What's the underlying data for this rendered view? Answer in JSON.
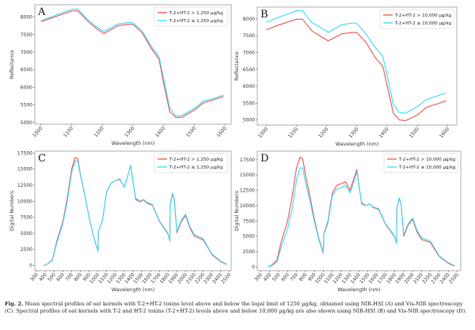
{
  "chart_data": [
    {
      "panel": "A",
      "type": "line",
      "xlabel": "Wavelength (nm)",
      "ylabel": "Reflectance",
      "xlim": [
        980,
        1620
      ],
      "ylim": [
        4950,
        8350
      ],
      "xticks": [
        1000,
        1100,
        1200,
        1300,
        1400,
        1500,
        1600
      ],
      "yticks": [
        5000,
        5500,
        6000,
        6500,
        7000,
        7500,
        8000
      ],
      "legend_position": "top-right",
      "grid": false,
      "series": [
        {
          "name": "T-2+HT-2 > 1,250 µg/kg",
          "color": "#f05050",
          "x": [
            1000,
            1050,
            1100,
            1120,
            1150,
            1180,
            1205,
            1250,
            1290,
            1300,
            1330,
            1360,
            1385,
            1400,
            1420,
            1440,
            1460,
            1500,
            1530,
            1560,
            1595
          ],
          "y": [
            7870,
            8020,
            8170,
            8180,
            7900,
            7680,
            7530,
            7750,
            7800,
            7790,
            7550,
            7100,
            6800,
            6100,
            5300,
            5140,
            5150,
            5350,
            5560,
            5640,
            5740
          ]
        },
        {
          "name": "T-2+HT-2 ≤ 1,250 µg/kg",
          "color": "#33ddff",
          "x": [
            1000,
            1050,
            1100,
            1120,
            1150,
            1180,
            1205,
            1250,
            1290,
            1300,
            1330,
            1360,
            1385,
            1400,
            1420,
            1440,
            1460,
            1500,
            1530,
            1560,
            1595
          ],
          "y": [
            7890,
            8060,
            8220,
            8230,
            7950,
            7730,
            7590,
            7800,
            7850,
            7840,
            7600,
            7160,
            6870,
            6250,
            5400,
            5190,
            5200,
            5400,
            5610,
            5680,
            5780
          ]
        }
      ]
    },
    {
      "panel": "B",
      "type": "line",
      "xlabel": "Wavelength (nm)",
      "ylabel": "Reflectance",
      "xlim": [
        970,
        1630
      ],
      "ylim": [
        4850,
        8350
      ],
      "xticks": [
        1000,
        1100,
        1200,
        1300,
        1400,
        1500,
        1600
      ],
      "yticks": [
        5000,
        5500,
        6000,
        6500,
        7000,
        7500,
        8000
      ],
      "legend_position": "top-right",
      "grid": false,
      "series": [
        {
          "name": "T-2+HT-2 > 10,000 µg/kg",
          "color": "#f05050",
          "x": [
            1000,
            1050,
            1100,
            1120,
            1150,
            1180,
            1205,
            1250,
            1290,
            1300,
            1330,
            1360,
            1385,
            1400,
            1420,
            1440,
            1460,
            1500,
            1530,
            1560,
            1595
          ],
          "y": [
            7680,
            7850,
            7990,
            7990,
            7650,
            7480,
            7350,
            7560,
            7600,
            7590,
            7300,
            6850,
            6600,
            6000,
            5200,
            5000,
            4980,
            5150,
            5380,
            5460,
            5570
          ]
        },
        {
          "name": "T-2+HT-2 ≤ 10,000 µg/kg",
          "color": "#33ddff",
          "x": [
            1000,
            1050,
            1100,
            1120,
            1150,
            1180,
            1205,
            1250,
            1290,
            1300,
            1330,
            1360,
            1385,
            1400,
            1420,
            1440,
            1460,
            1500,
            1530,
            1560,
            1595
          ],
          "y": [
            7900,
            8080,
            8240,
            8240,
            7900,
            7740,
            7600,
            7830,
            7880,
            7860,
            7550,
            7150,
            6900,
            6300,
            5450,
            5220,
            5200,
            5400,
            5610,
            5700,
            5800
          ]
        }
      ]
    },
    {
      "panel": "C",
      "type": "line",
      "xlabel": "Wavelength (nm)",
      "ylabel": "Digital Numbers",
      "xlim": [
        280,
        2520
      ],
      "ylim": [
        -800,
        17800
      ],
      "xticks": [
        300,
        400,
        500,
        600,
        700,
        800,
        900,
        1000,
        1100,
        1200,
        1300,
        1400,
        1500,
        1600,
        1700,
        1800,
        1900,
        2000,
        2100,
        2200,
        2300,
        2400,
        2500
      ],
      "yticks": [
        0,
        2500,
        5000,
        7500,
        10000,
        12500,
        15000,
        17500
      ],
      "legend_position": "top-right",
      "grid": false,
      "series": [
        {
          "name": "T-2+HT-2 > 1,250 µg/kg",
          "color": "#f05050",
          "x": [
            380,
            420,
            480,
            530,
            600,
            650,
            700,
            740,
            770,
            800,
            850,
            900,
            950,
            1000,
            1005,
            1050,
            1100,
            1150,
            1200,
            1250,
            1300,
            1330,
            1375,
            1400,
            1430,
            1480,
            1520,
            1560,
            1620,
            1700,
            1800,
            1820,
            1825,
            1850,
            1870,
            1900,
            1950,
            2000,
            2050,
            2100,
            2200,
            2250,
            2300,
            2400,
            2470
          ],
          "y": [
            0,
            200,
            900,
            3800,
            6800,
            10500,
            15000,
            16800,
            16600,
            14200,
            11000,
            7500,
            4500,
            2300,
            5300,
            7000,
            11500,
            12800,
            13200,
            13400,
            12200,
            13500,
            15600,
            13000,
            10300,
            9900,
            10200,
            9700,
            9400,
            6900,
            4900,
            3800,
            9500,
            11100,
            10400,
            5100,
            6800,
            7800,
            5800,
            4600,
            4000,
            2900,
            1700,
            600,
            150
          ]
        },
        {
          "name": "T-2+HT-2 ≤ 1,250 µg/kg",
          "color": "#33ddff",
          "x": [
            380,
            420,
            480,
            530,
            600,
            650,
            700,
            740,
            770,
            800,
            850,
            900,
            950,
            1000,
            1005,
            1050,
            1100,
            1150,
            1200,
            1250,
            1300,
            1330,
            1375,
            1400,
            1430,
            1480,
            1520,
            1560,
            1620,
            1700,
            1800,
            1820,
            1825,
            1850,
            1870,
            1900,
            1950,
            2000,
            2050,
            2100,
            2200,
            2250,
            2300,
            2400,
            2470
          ],
          "y": [
            0,
            180,
            800,
            3500,
            6500,
            10000,
            14500,
            16300,
            16200,
            14000,
            11000,
            7500,
            4500,
            2200,
            5300,
            7000,
            11500,
            12800,
            13200,
            13500,
            12200,
            13500,
            15600,
            13000,
            10500,
            10000,
            10300,
            9800,
            9500,
            7000,
            5000,
            3800,
            9500,
            11300,
            10500,
            5300,
            7000,
            8000,
            6000,
            4800,
            4200,
            3000,
            1800,
            700,
            200
          ]
        }
      ]
    },
    {
      "panel": "D",
      "type": "line",
      "xlabel": "Wavelength (nm)",
      "ylabel": "Digital Numbers",
      "xlim": [
        260,
        2540
      ],
      "ylim": [
        -600,
        18900
      ],
      "xticks": [
        300,
        400,
        500,
        600,
        700,
        800,
        900,
        1000,
        1100,
        1200,
        1300,
        1400,
        1500,
        1600,
        1700,
        1800,
        1900,
        2000,
        2100,
        2200,
        2300,
        2400,
        2500
      ],
      "yticks": [
        0,
        2500,
        5000,
        7500,
        10000,
        12500,
        15000,
        17500
      ],
      "legend_position": "top-right",
      "grid": false,
      "series": [
        {
          "name": "T-2+HT-2 > 10,000 µg/kg",
          "color": "#f05050",
          "x": [
            380,
            420,
            480,
            530,
            600,
            650,
            700,
            740,
            770,
            800,
            850,
            900,
            950,
            1000,
            1005,
            1050,
            1100,
            1150,
            1200,
            1250,
            1300,
            1330,
            1375,
            1400,
            1430,
            1480,
            1520,
            1560,
            1620,
            1700,
            1800,
            1820,
            1825,
            1850,
            1870,
            1900,
            1950,
            2000,
            2050,
            2100,
            2200,
            2250,
            2300,
            2400,
            2470
          ],
          "y": [
            0,
            250,
            1100,
            4200,
            7500,
            11500,
            16200,
            17900,
            17600,
            15000,
            11500,
            7800,
            4600,
            2400,
            5400,
            7300,
            12000,
            13300,
            13600,
            13900,
            12500,
            13900,
            15900,
            13200,
            10300,
            10000,
            10300,
            9700,
            9400,
            6900,
            4900,
            3900,
            9500,
            11200,
            10400,
            5000,
            6800,
            7800,
            5700,
            4500,
            4000,
            2800,
            1700,
            600,
            150
          ]
        },
        {
          "name": "T-2+HT-2 ≤ 10,000 µg/kg",
          "color": "#33ddff",
          "x": [
            380,
            420,
            480,
            530,
            600,
            650,
            700,
            740,
            770,
            800,
            850,
            900,
            950,
            1000,
            1005,
            1050,
            1100,
            1150,
            1200,
            1250,
            1300,
            1330,
            1375,
            1400,
            1430,
            1480,
            1520,
            1560,
            1620,
            1700,
            1800,
            1820,
            1825,
            1850,
            1870,
            1900,
            1950,
            2000,
            2050,
            2100,
            2200,
            2250,
            2300,
            2400,
            2470
          ],
          "y": [
            0,
            180,
            800,
            3300,
            6200,
            9500,
            14200,
            16200,
            16100,
            13800,
            10800,
            7400,
            4400,
            2200,
            5300,
            7000,
            11600,
            12700,
            13000,
            13300,
            12100,
            13300,
            15600,
            13000,
            10500,
            10000,
            10300,
            9800,
            9500,
            7000,
            5000,
            3800,
            9500,
            11300,
            10500,
            5300,
            7000,
            8000,
            6000,
            4800,
            4200,
            3000,
            1800,
            700,
            200
          ]
        }
      ]
    }
  ],
  "caption": {
    "label": "Fig. 2.",
    "text": "Mean spectral profiles of oat kernels with T-2+HT-2 toxins level above and below the legal limit of 1250 µg/kg, obtained using NIR-HSI (A) and Vis-NIR spectroscopy (C). Spectral profiles of oat kernels with T-2 and HT-2 toxins (T-2+HT-2) levels above and below 10,000 µg/kg are also shown using NIR-HSI (B) and Vis-NIR spectroscopy (D)."
  }
}
